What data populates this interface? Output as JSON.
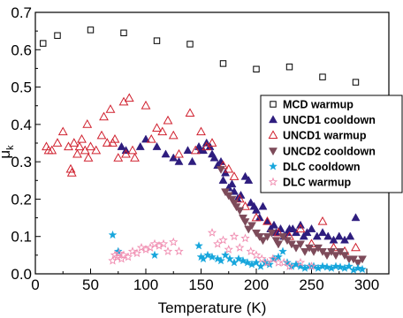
{
  "chart_data": {
    "type": "scatter",
    "xlabel": "Temperature (K)",
    "ylabel_main": "μ",
    "ylabel_sub": "k",
    "xlim": [
      0,
      320
    ],
    "ylim": [
      0.0,
      0.7
    ],
    "xticks": [
      0,
      50,
      100,
      150,
      200,
      250,
      300
    ],
    "xtick_labels": [
      "0",
      "50",
      "100",
      "150",
      "200",
      "250",
      "300"
    ],
    "yticks": [
      0.0,
      0.1,
      0.2,
      0.3,
      0.4,
      0.5,
      0.6,
      0.7
    ],
    "ytick_labels": [
      "0.0",
      "0.1",
      "0.2",
      "0.3",
      "0.4",
      "0.5",
      "0.6",
      "0.7"
    ],
    "grid": false,
    "legend_position": "right",
    "series": [
      {
        "name": "MCD warmup",
        "marker": "square-open",
        "color": "#000000",
        "points": [
          [
            7,
            0.617
          ],
          [
            20,
            0.638
          ],
          [
            50,
            0.653
          ],
          [
            80,
            0.645
          ],
          [
            110,
            0.624
          ],
          [
            140,
            0.615
          ],
          [
            170,
            0.563
          ],
          [
            200,
            0.548
          ],
          [
            230,
            0.554
          ],
          [
            260,
            0.527
          ],
          [
            290,
            0.513
          ]
        ]
      },
      {
        "name": "UNCD1 cooldown",
        "marker": "triangle-up-filled",
        "color": "#2e1d7e",
        "points": [
          [
            78,
            0.34
          ],
          [
            82,
            0.33
          ],
          [
            95,
            0.34
          ],
          [
            100,
            0.36
          ],
          [
            110,
            0.34
          ],
          [
            118,
            0.32
          ],
          [
            125,
            0.31
          ],
          [
            130,
            0.3
          ],
          [
            138,
            0.33
          ],
          [
            142,
            0.3
          ],
          [
            148,
            0.34
          ],
          [
            150,
            0.33
          ],
          [
            152,
            0.33
          ],
          [
            155,
            0.35
          ],
          [
            158,
            0.34
          ],
          [
            160,
            0.32
          ],
          [
            162,
            0.31
          ],
          [
            165,
            0.29
          ],
          [
            168,
            0.3
          ],
          [
            170,
            0.25
          ],
          [
            172,
            0.27
          ],
          [
            175,
            0.23
          ],
          [
            178,
            0.24
          ],
          [
            180,
            0.22
          ],
          [
            183,
            0.2
          ],
          [
            186,
            0.21
          ],
          [
            190,
            0.26
          ],
          [
            193,
            0.25
          ],
          [
            195,
            0.19
          ],
          [
            198,
            0.18
          ],
          [
            200,
            0.17
          ],
          [
            203,
            0.15
          ],
          [
            206,
            0.18
          ],
          [
            210,
            0.14
          ],
          [
            213,
            0.12
          ],
          [
            216,
            0.13
          ],
          [
            218,
            0.11
          ],
          [
            222,
            0.12
          ],
          [
            225,
            0.1
          ],
          [
            228,
            0.11
          ],
          [
            230,
            0.12
          ],
          [
            233,
            0.12
          ],
          [
            236,
            0.11
          ],
          [
            240,
            0.13
          ],
          [
            243,
            0.1
          ],
          [
            246,
            0.11
          ],
          [
            250,
            0.12
          ],
          [
            255,
            0.1
          ],
          [
            260,
            0.11
          ],
          [
            265,
            0.1
          ],
          [
            270,
            0.09
          ],
          [
            275,
            0.1
          ],
          [
            280,
            0.09
          ],
          [
            285,
            0.1
          ],
          [
            290,
            0.15
          ]
        ]
      },
      {
        "name": "UNCD1 warmup",
        "marker": "triangle-up-open",
        "color": "#d0202e",
        "points": [
          [
            10,
            0.34
          ],
          [
            12,
            0.33
          ],
          [
            15,
            0.33
          ],
          [
            20,
            0.35
          ],
          [
            25,
            0.38
          ],
          [
            30,
            0.34
          ],
          [
            32,
            0.28
          ],
          [
            33,
            0.27
          ],
          [
            35,
            0.35
          ],
          [
            38,
            0.32
          ],
          [
            40,
            0.34
          ],
          [
            42,
            0.36
          ],
          [
            45,
            0.33
          ],
          [
            47,
            0.4
          ],
          [
            48,
            0.31
          ],
          [
            50,
            0.34
          ],
          [
            55,
            0.33
          ],
          [
            60,
            0.37
          ],
          [
            62,
            0.42
          ],
          [
            65,
            0.35
          ],
          [
            68,
            0.44
          ],
          [
            70,
            0.35
          ],
          [
            72,
            0.36
          ],
          [
            75,
            0.31
          ],
          [
            80,
            0.46
          ],
          [
            82,
            0.32
          ],
          [
            85,
            0.47
          ],
          [
            88,
            0.33
          ],
          [
            90,
            0.31
          ],
          [
            100,
            0.45
          ],
          [
            105,
            0.36
          ],
          [
            110,
            0.39
          ],
          [
            115,
            0.38
          ],
          [
            120,
            0.41
          ],
          [
            125,
            0.37
          ],
          [
            130,
            0.32
          ],
          [
            140,
            0.43
          ],
          [
            145,
            0.33
          ],
          [
            150,
            0.38
          ],
          [
            155,
            0.34
          ],
          [
            160,
            0.35
          ],
          [
            170,
            0.29
          ],
          [
            175,
            0.28
          ],
          [
            180,
            0.26
          ],
          [
            185,
            0.2
          ],
          [
            190,
            0.18
          ],
          [
            200,
            0.15
          ],
          [
            210,
            0.14
          ],
          [
            220,
            0.11
          ],
          [
            230,
            0.1
          ],
          [
            240,
            0.12
          ],
          [
            250,
            0.08
          ],
          [
            260,
            0.14
          ],
          [
            270,
            0.07
          ],
          [
            280,
            0.06
          ],
          [
            290,
            0.07
          ]
        ]
      },
      {
        "name": "UNCD2 cooldown",
        "marker": "triangle-down-filled",
        "color": "#7d4b5a",
        "points": [
          [
            168,
            0.28
          ],
          [
            172,
            0.22
          ],
          [
            175,
            0.21
          ],
          [
            178,
            0.2
          ],
          [
            180,
            0.19
          ],
          [
            182,
            0.18
          ],
          [
            185,
            0.17
          ],
          [
            188,
            0.15
          ],
          [
            190,
            0.14
          ],
          [
            193,
            0.12
          ],
          [
            196,
            0.13
          ],
          [
            200,
            0.11
          ],
          [
            203,
            0.1
          ],
          [
            206,
            0.09
          ],
          [
            210,
            0.1
          ],
          [
            214,
            0.11
          ],
          [
            218,
            0.09
          ],
          [
            220,
            0.08
          ],
          [
            224,
            0.1
          ],
          [
            228,
            0.09
          ],
          [
            232,
            0.08
          ],
          [
            236,
            0.07
          ],
          [
            240,
            0.08
          ],
          [
            244,
            0.06
          ],
          [
            248,
            0.07
          ],
          [
            252,
            0.06
          ],
          [
            256,
            0.07
          ],
          [
            260,
            0.06
          ],
          [
            264,
            0.05
          ],
          [
            268,
            0.06
          ],
          [
            272,
            0.05
          ],
          [
            276,
            0.06
          ],
          [
            280,
            0.05
          ],
          [
            284,
            0.04
          ],
          [
            288,
            0.04
          ],
          [
            292,
            0.03
          ],
          [
            296,
            0.04
          ]
        ]
      },
      {
        "name": "DLC cooldown",
        "marker": "star-filled",
        "color": "#16a6dc",
        "points": [
          [
            70,
            0.104
          ],
          [
            75,
            0.06
          ],
          [
            108,
            0.05
          ],
          [
            148,
            0.075
          ],
          [
            150,
            0.045
          ],
          [
            152,
            0.04
          ],
          [
            156,
            0.05
          ],
          [
            160,
            0.045
          ],
          [
            165,
            0.04
          ],
          [
            168,
            0.035
          ],
          [
            172,
            0.05
          ],
          [
            176,
            0.04
          ],
          [
            180,
            0.03
          ],
          [
            184,
            0.04
          ],
          [
            188,
            0.035
          ],
          [
            192,
            0.03
          ],
          [
            196,
            0.025
          ],
          [
            200,
            0.03
          ],
          [
            204,
            0.02
          ],
          [
            208,
            0.03
          ],
          [
            212,
            0.025
          ],
          [
            216,
            0.04
          ],
          [
            220,
            0.045
          ],
          [
            224,
            0.06
          ],
          [
            228,
            0.03
          ],
          [
            232,
            0.02
          ],
          [
            236,
            0.025
          ],
          [
            240,
            0.02
          ],
          [
            244,
            0.015
          ],
          [
            248,
            0.02
          ],
          [
            252,
            0.02
          ],
          [
            256,
            0.015
          ],
          [
            260,
            0.02
          ],
          [
            264,
            0.018
          ],
          [
            268,
            0.015
          ],
          [
            272,
            0.02
          ],
          [
            276,
            0.018
          ],
          [
            280,
            0.015
          ],
          [
            284,
            0.02
          ],
          [
            288,
            0.01
          ],
          [
            292,
            0.015
          ],
          [
            296,
            0.012
          ]
        ]
      },
      {
        "name": "DLC warmup",
        "marker": "star-open",
        "color": "#f08cb0",
        "points": [
          [
            70,
            0.035
          ],
          [
            72,
            0.05
          ],
          [
            74,
            0.045
          ],
          [
            76,
            0.055
          ],
          [
            78,
            0.04
          ],
          [
            80,
            0.05
          ],
          [
            84,
            0.045
          ],
          [
            88,
            0.06
          ],
          [
            92,
            0.055
          ],
          [
            96,
            0.07
          ],
          [
            100,
            0.065
          ],
          [
            104,
            0.07
          ],
          [
            108,
            0.08
          ],
          [
            112,
            0.075
          ],
          [
            116,
            0.08
          ],
          [
            120,
            0.06
          ],
          [
            125,
            0.085
          ],
          [
            130,
            0.06
          ],
          [
            160,
            0.11
          ],
          [
            165,
            0.08
          ],
          [
            170,
            0.09
          ],
          [
            175,
            0.065
          ],
          [
            180,
            0.1
          ],
          [
            185,
            0.07
          ],
          [
            190,
            0.095
          ],
          [
            195,
            0.06
          ],
          [
            200,
            0.05
          ],
          [
            205,
            0.04
          ],
          [
            210,
            0.03
          ],
          [
            215,
            0.04
          ],
          [
            220,
            0.03
          ],
          [
            225,
            0.03
          ],
          [
            230,
            0.02
          ],
          [
            240,
            0.03
          ],
          [
            250,
            0.02
          ]
        ]
      }
    ]
  }
}
